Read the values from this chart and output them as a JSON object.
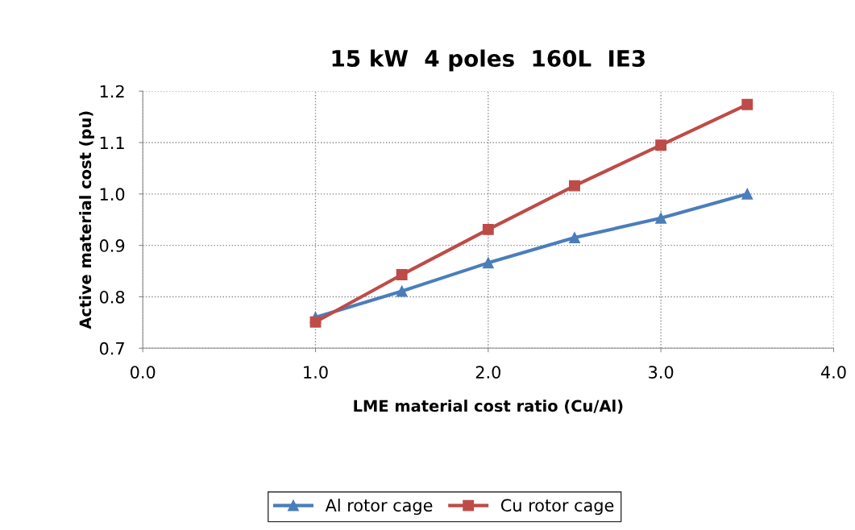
{
  "chart_data": {
    "type": "line",
    "title": "15 kW  4 poles  160L  IE3",
    "xlabel": "LME material cost ratio (Cu/Al)",
    "ylabel": "Active material cost (pu)",
    "x": [
      1.0,
      1.5,
      2.0,
      2.5,
      3.0,
      3.5
    ],
    "series": [
      {
        "name": "Al rotor cage",
        "color": "#4a7ebb",
        "marker": "triangle",
        "values": [
          0.76,
          0.811,
          0.866,
          0.915,
          0.953,
          1.0
        ]
      },
      {
        "name": "Cu rotor cage",
        "color": "#be4b48",
        "marker": "square",
        "values": [
          0.751,
          0.843,
          0.931,
          1.016,
          1.095,
          1.174
        ]
      }
    ],
    "xlim": [
      0.0,
      4.0
    ],
    "xticks": [
      {
        "value": 0,
        "label": "0.0"
      },
      {
        "value": 1,
        "label": "1.0"
      },
      {
        "value": 2,
        "label": "2.0"
      },
      {
        "value": 3,
        "label": "3.0"
      },
      {
        "value": 4,
        "label": "4.0"
      }
    ],
    "ylim": [
      0.7,
      1.2
    ],
    "yticks": [
      0.7,
      0.8,
      0.9,
      {
        "value": 1.0,
        "label": "1.0"
      },
      1.1,
      1.2
    ],
    "grid": true,
    "legend": "bottom",
    "line_style": "solid"
  }
}
